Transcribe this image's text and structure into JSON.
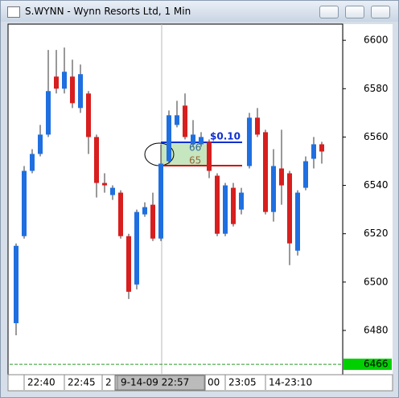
{
  "window": {
    "title": "S.WYNN - Wynn Resorts Ltd, 1 Min"
  },
  "chart_data": {
    "type": "candlestick",
    "ylim": [
      6461.7,
      6606.7
    ],
    "yticks": [
      6600,
      6580,
      6560,
      6540,
      6520,
      6500,
      6480
    ],
    "xtick_labels": [
      "22:40",
      "22:45",
      "2",
      "9-14-09 22:57",
      "00",
      "23:05",
      "14-23:10"
    ],
    "up_color": "#1f6fe0",
    "down_color": "#d81e1e",
    "open": [
      6483,
      6519,
      6546,
      6553,
      6561,
      6585,
      6580,
      6585,
      6572,
      6578,
      6560,
      6541,
      6536,
      6537,
      6519,
      6499,
      6528,
      6532,
      6518,
      6550,
      6565,
      6573,
      6557,
      6557,
      6558,
      6544,
      6520,
      6539,
      6530,
      6548,
      6568,
      6562,
      6529,
      6547,
      6545,
      6513,
      6539,
      6551,
      6557
    ],
    "high": [
      6516,
      6548,
      6555,
      6565,
      6596,
      6596,
      6597,
      6592,
      6590,
      6579,
      6561,
      6545,
      6540,
      6538,
      6520,
      6530,
      6533,
      6537,
      6557,
      6571,
      6575,
      6578,
      6567,
      6562,
      6559,
      6545,
      6541,
      6541,
      6539,
      6570,
      6572,
      6563,
      6555,
      6563,
      6546,
      6538,
      6552,
      6560,
      6558
    ],
    "low": [
      6478,
      6518,
      6545,
      6552,
      6560,
      6578,
      6578,
      6572,
      6570,
      6553,
      6535,
      6537,
      6534,
      6518,
      6493,
      6497,
      6527,
      6517,
      6517,
      6549,
      6564,
      6559,
      6556,
      6556,
      6543,
      6519,
      6519,
      6523,
      6528,
      6547,
      6560,
      6528,
      6525,
      6532,
      6507,
      6511,
      6538,
      6547,
      6549
    ],
    "close": [
      6515,
      6546,
      6553,
      6561,
      6579,
      6580,
      6587,
      6574,
      6586,
      6560,
      6541,
      6540,
      6539,
      6519,
      6496,
      6529,
      6531,
      6518,
      6549,
      6569,
      6569,
      6560,
      6561,
      6560,
      6546,
      6520,
      6540,
      6524,
      6537,
      6568,
      6561,
      6529,
      6548,
      6540,
      6516,
      6537,
      6550,
      6557,
      6554
    ],
    "last_price": 6466,
    "annotations": {
      "change": "$0.10",
      "upper": "66",
      "lower": "65"
    }
  }
}
